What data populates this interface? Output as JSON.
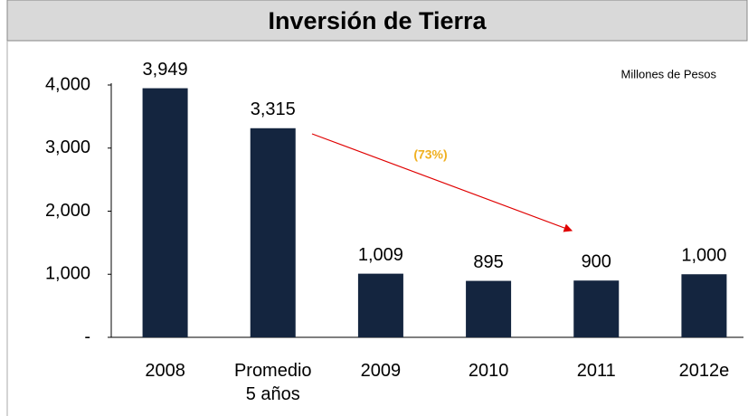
{
  "chart_data": {
    "type": "bar",
    "title": "Inversión de Tierra",
    "categories": [
      "2008",
      "Promedio 5 años",
      "2009",
      "2010",
      "2011",
      "2012e"
    ],
    "values": [
      3949,
      3315,
      1009,
      895,
      900,
      1000
    ],
    "value_labels": [
      "3,949",
      "3,315",
      "1,009",
      "895",
      "900",
      "1,000"
    ],
    "color": "#14253f",
    "ylim": [
      0,
      4000
    ],
    "yticks": [
      {
        "value": 0,
        "label": "-"
      },
      {
        "value": 1000,
        "label": "1,000"
      },
      {
        "value": 2000,
        "label": "2,000"
      },
      {
        "value": 3000,
        "label": "3,000"
      },
      {
        "value": 4000,
        "label": "4,000"
      }
    ],
    "grid": false,
    "annotations": [
      "Millones de Pesos",
      "(73%)"
    ]
  }
}
